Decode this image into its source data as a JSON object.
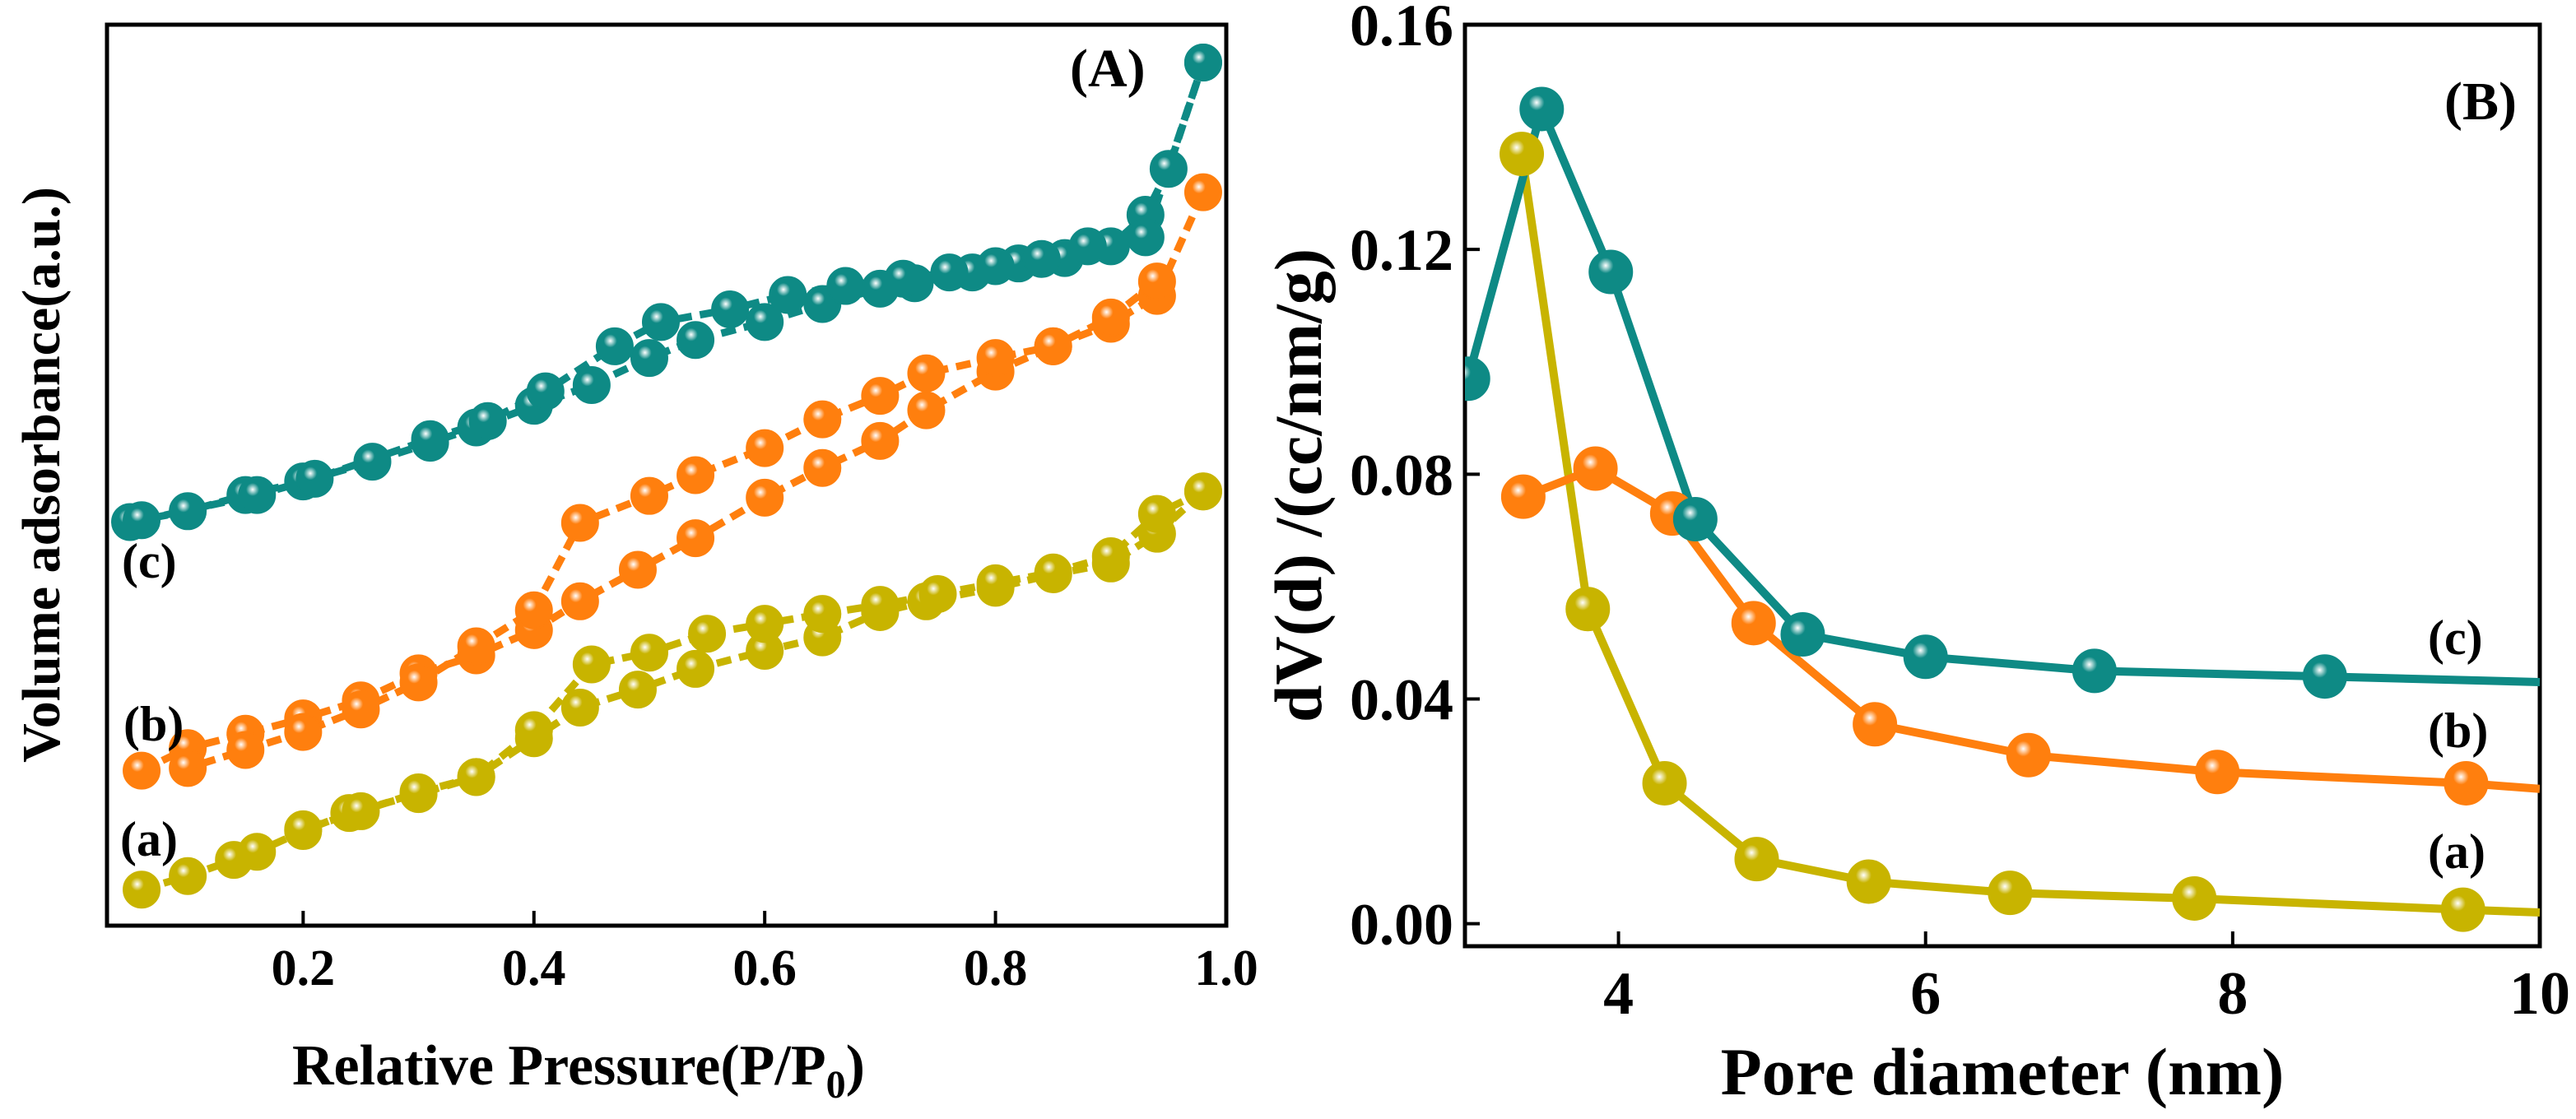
{
  "chart_data": [
    {
      "panel": "(A)",
      "type": "scatter",
      "xlabel": "Relative Pressure(P/P",
      "xlabel_sub": "0",
      "xlabel_close": ")",
      "ylabel": "Volume adsorbance(a.u.)",
      "xlim": [
        0.03,
        1.0
      ],
      "ylim": [
        0,
        100
      ],
      "xticks": [
        "0.2",
        "0.4",
        "0.6",
        "0.8",
        "1.0"
      ],
      "xtick_values": [
        0.2,
        0.4,
        0.6,
        0.8,
        1.0
      ],
      "yticks_shown": false,
      "series": [
        {
          "name": "(a)",
          "color": "#C8B400",
          "adsorption": {
            "x": [
              0.06,
              0.1,
              0.14,
              0.16,
              0.2,
              0.24,
              0.3,
              0.35,
              0.4,
              0.44,
              0.49,
              0.54,
              0.6,
              0.65,
              0.7,
              0.74,
              0.8,
              0.85,
              0.9,
              0.94,
              0.98
            ],
            "y": [
              4.0,
              5.5,
              7.3,
              8.2,
              10.5,
              12.5,
              14.6,
              16.5,
              20.8,
              24.2,
              26.2,
              28.5,
              30.5,
              32.0,
              34.8,
              36.0,
              37.5,
              39.0,
              40.2,
              43.5,
              48.2
            ]
          },
          "desorption": {
            "x": [
              0.98,
              0.94,
              0.9,
              0.85,
              0.8,
              0.75,
              0.7,
              0.65,
              0.6,
              0.55,
              0.5,
              0.45,
              0.4,
              0.35,
              0.3,
              0.25,
              0.2
            ],
            "y": [
              48.2,
              45.7,
              41.0,
              39.2,
              38.0,
              36.8,
              35.6,
              34.6,
              33.5,
              32.4,
              30.3,
              29.0,
              21.7,
              16.5,
              14.8,
              12.7,
              10.7
            ]
          }
        },
        {
          "name": "(b)",
          "color": "#FF7F0E",
          "adsorption": {
            "x": [
              0.06,
              0.1,
              0.15,
              0.2,
              0.25,
              0.3,
              0.35,
              0.4,
              0.44,
              0.49,
              0.54,
              0.6,
              0.65,
              0.7,
              0.74,
              0.8,
              0.85,
              0.9,
              0.94,
              0.98
            ],
            "y": [
              17.2,
              19.7,
              21.3,
              23.0,
              25.0,
              28.0,
              30.0,
              32.8,
              36.0,
              39.5,
              43.0,
              47.5,
              50.8,
              53.8,
              57.2,
              61.5,
              64.3,
              66.8,
              69.9,
              81.4
            ]
          },
          "desorption": {
            "x": [
              0.94,
              0.9,
              0.85,
              0.8,
              0.74,
              0.7,
              0.65,
              0.6,
              0.54,
              0.5,
              0.44,
              0.4,
              0.35,
              0.3,
              0.25,
              0.2,
              0.15,
              0.1
            ],
            "y": [
              71.5,
              67.5,
              64.3,
              63.0,
              61.3,
              58.8,
              56.2,
              53.0,
              50.0,
              47.7,
              44.7,
              35.0,
              31.0,
              27.0,
              24.0,
              21.5,
              19.5,
              17.5
            ]
          }
        },
        {
          "name": "(c)",
          "color": "#0E8A85",
          "adsorption": {
            "x": [
              0.05,
              0.1,
              0.15,
              0.2,
              0.26,
              0.31,
              0.35,
              0.4,
              0.45,
              0.5,
              0.54,
              0.6,
              0.65,
              0.7,
              0.73,
              0.78,
              0.82,
              0.86,
              0.9,
              0.93,
              0.95,
              0.98
            ],
            "y": [
              44.8,
              46.0,
              47.8,
              49.3,
              51.5,
              53.6,
              55.3,
              57.7,
              60.0,
              63.0,
              65.0,
              67.0,
              69.0,
              70.7,
              71.3,
              72.5,
              73.5,
              74.1,
              75.4,
              78.9,
              84.0,
              95.8
            ]
          },
          "desorption": {
            "x": [
              0.98,
              0.93,
              0.88,
              0.84,
              0.8,
              0.76,
              0.72,
              0.67,
              0.62,
              0.57,
              0.51,
              0.47,
              0.41,
              0.36,
              0.31,
              0.21,
              0.16,
              0.06
            ],
            "y": [
              95.8,
              76.4,
              75.4,
              74.0,
              73.2,
              72.5,
              71.8,
              71.0,
              70.0,
              68.4,
              67.0,
              64.3,
              59.3,
              56.0,
              54.0,
              49.6,
              47.8,
              45.0
            ]
          }
        }
      ],
      "curve_labels": [
        "(a)",
        "(b)",
        "(c)"
      ]
    },
    {
      "panel": "(B)",
      "type": "line",
      "xlabel": "Pore diameter (nm)",
      "ylabel": "dV(d) /(cc/nm/g)",
      "xlim": [
        3.0,
        10.0
      ],
      "ylim": [
        -0.004,
        0.16
      ],
      "xticks": [
        "4",
        "6",
        "8",
        "10"
      ],
      "xtick_values": [
        4,
        6,
        8,
        10
      ],
      "yticks": [
        "0.00",
        "0.04",
        "0.08",
        "0.12",
        "0.16"
      ],
      "ytick_values": [
        0.0,
        0.04,
        0.08,
        0.12,
        0.16
      ],
      "series": [
        {
          "name": "(a)",
          "color": "#C8B400",
          "x": [
            3.37,
            3.8,
            4.3,
            4.9,
            5.63,
            6.55,
            7.75,
            9.5,
            10.0
          ],
          "y": [
            0.137,
            0.056,
            0.025,
            0.0115,
            0.0075,
            0.0055,
            0.0045,
            0.0025,
            0.002
          ],
          "markers": [
            true,
            true,
            true,
            true,
            true,
            true,
            true,
            true,
            false
          ]
        },
        {
          "name": "(b)",
          "color": "#FF7F0E",
          "x": [
            3.38,
            3.85,
            4.35,
            4.88,
            5.67,
            6.67,
            7.9,
            9.52,
            10.0
          ],
          "y": [
            0.076,
            0.081,
            0.073,
            0.0535,
            0.0355,
            0.03,
            0.027,
            0.025,
            0.024
          ],
          "markers": [
            true,
            true,
            true,
            true,
            true,
            true,
            true,
            true,
            false
          ]
        },
        {
          "name": "(c)",
          "color": "#0E8A85",
          "x": [
            3.02,
            3.5,
            3.95,
            4.5,
            5.2,
            6.0,
            7.1,
            8.6,
            10.0
          ],
          "y": [
            0.097,
            0.145,
            0.116,
            0.072,
            0.0515,
            0.0475,
            0.045,
            0.044,
            0.043
          ],
          "markers": [
            true,
            true,
            true,
            true,
            true,
            true,
            true,
            true,
            false
          ]
        }
      ],
      "curve_labels": [
        "(a)",
        "(b)",
        "(c)"
      ]
    }
  ]
}
